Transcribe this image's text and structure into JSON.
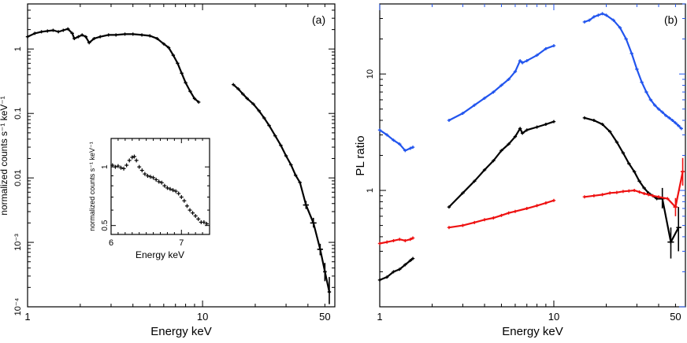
{
  "colors": {
    "black": "#000000",
    "blue": "#2255ee",
    "red": "#ee1111"
  },
  "chart_data": [
    {
      "panel": "(a)",
      "type": "scatter",
      "xscale": "log",
      "yscale": "log",
      "xlabel": "Energy keV",
      "ylabel": "normalized counts s⁻¹ keV⁻¹",
      "xlim": [
        1,
        57
      ],
      "ylim": [
        0.0001,
        5
      ],
      "xticks": [
        "1",
        "10",
        "50"
      ],
      "yticks": [
        "10⁻⁴",
        "10⁻³",
        "0.01",
        "0.1",
        "1"
      ],
      "series": [
        {
          "name": "spectrum",
          "color": "black",
          "points": [
            [
              1.0,
              1.55
            ],
            [
              1.1,
              1.75
            ],
            [
              1.2,
              1.85
            ],
            [
              1.3,
              1.9
            ],
            [
              1.4,
              1.95
            ],
            [
              1.5,
              1.85
            ],
            [
              1.6,
              1.95
            ],
            [
              1.7,
              2.05
            ],
            [
              1.8,
              1.75
            ],
            [
              1.85,
              1.45
            ],
            [
              1.95,
              1.55
            ],
            [
              2.05,
              1.65
            ],
            [
              2.15,
              1.55
            ],
            [
              2.25,
              1.25
            ],
            [
              2.4,
              1.45
            ],
            [
              2.6,
              1.55
            ],
            [
              2.9,
              1.65
            ],
            [
              3.2,
              1.65
            ],
            [
              3.6,
              1.7
            ],
            [
              4.0,
              1.7
            ],
            [
              4.5,
              1.65
            ],
            [
              5.0,
              1.6
            ],
            [
              5.5,
              1.45
            ],
            [
              6.0,
              1.2
            ],
            [
              6.4,
              1.05
            ],
            [
              6.8,
              0.8
            ],
            [
              7.2,
              0.6
            ],
            [
              7.6,
              0.42
            ],
            [
              8.0,
              0.3
            ],
            [
              8.5,
              0.22
            ],
            [
              9.0,
              0.17
            ],
            [
              9.5,
              0.15
            ],
            [
              15.0,
              0.28
            ],
            [
              16.0,
              0.24
            ],
            [
              17.0,
              0.2
            ],
            [
              18.0,
              0.17
            ],
            [
              19.5,
              0.14
            ],
            [
              21.0,
              0.11
            ],
            [
              22.5,
              0.085
            ],
            [
              24.0,
              0.065
            ],
            [
              26.0,
              0.045
            ],
            [
              28.0,
              0.032
            ],
            [
              30.0,
              0.022
            ],
            [
              32.0,
              0.016
            ],
            [
              34.0,
              0.011
            ],
            [
              36.0,
              0.0085
            ],
            [
              39.0,
              0.0038
            ],
            [
              43.0,
              0.002
            ],
            [
              47.0,
              0.00078
            ],
            [
              50.0,
              0.00035
            ],
            [
              53.0,
              0.00017
            ]
          ],
          "error_bars": [
            {
              "x": 39.0,
              "y": 0.0038,
              "xerr": [
                37.5,
                40.5
              ],
              "yerr": [
                0.0033,
                0.0044
              ]
            },
            {
              "x": 43.0,
              "y": 0.002,
              "xerr": [
                41.2,
                44.8
              ],
              "yerr": [
                0.0017,
                0.0024
              ]
            },
            {
              "x": 47.0,
              "y": 0.00078,
              "xerr": [
                45.2,
                48.8
              ],
              "yerr": [
                0.00063,
                0.00095
              ]
            },
            {
              "x": 50.0,
              "y": 0.00035,
              "xerr": [
                49.0,
                51.2
              ],
              "yerr": [
                0.00025,
                0.00048
              ]
            },
            {
              "x": 53.0,
              "y": 0.00017,
              "xerr": [
                52.0,
                54.0
              ],
              "yerr": [
                0.00011,
                0.00029
              ]
            }
          ]
        }
      ],
      "inset": {
        "type": "scatter",
        "xlabel": "Energy keV",
        "ylabel": "normalized counts s⁻¹ keV⁻¹",
        "xlim": [
          6.0,
          7.4
        ],
        "ylim": [
          0.45,
          1.4
        ],
        "xticks": [
          "6",
          "7"
        ],
        "yticks": [
          "0.5",
          "1"
        ],
        "points": [
          [
            6.02,
            1.02
          ],
          [
            6.06,
            1.0
          ],
          [
            6.1,
            1.01
          ],
          [
            6.14,
            0.99
          ],
          [
            6.18,
            0.98
          ],
          [
            6.22,
            1.02
          ],
          [
            6.26,
            1.08
          ],
          [
            6.3,
            1.12
          ],
          [
            6.33,
            1.13
          ],
          [
            6.36,
            1.08
          ],
          [
            6.4,
            1.0
          ],
          [
            6.44,
            0.96
          ],
          [
            6.48,
            0.92
          ],
          [
            6.52,
            0.9
          ],
          [
            6.56,
            0.89
          ],
          [
            6.6,
            0.88
          ],
          [
            6.64,
            0.86
          ],
          [
            6.68,
            0.84
          ],
          [
            6.72,
            0.83
          ],
          [
            6.76,
            0.8
          ],
          [
            6.8,
            0.78
          ],
          [
            6.84,
            0.77
          ],
          [
            6.88,
            0.76
          ],
          [
            6.92,
            0.75
          ],
          [
            6.96,
            0.73
          ],
          [
            7.0,
            0.7
          ],
          [
            7.04,
            0.67
          ],
          [
            7.08,
            0.63
          ],
          [
            7.12,
            0.6
          ],
          [
            7.16,
            0.58
          ],
          [
            7.2,
            0.56
          ],
          [
            7.24,
            0.54
          ],
          [
            7.28,
            0.52
          ],
          [
            7.32,
            0.52
          ],
          [
            7.36,
            0.51
          ]
        ]
      }
    },
    {
      "panel": "(b)",
      "type": "scatter",
      "xscale": "log",
      "yscale": "log",
      "xlabel": "Energy keV",
      "ylabel": "PL ratio",
      "xlim": [
        1,
        57
      ],
      "ylim": [
        0.1,
        40
      ],
      "xticks": [
        "1",
        "10",
        "50"
      ],
      "yticks": [
        "1",
        "10"
      ],
      "series": [
        {
          "name": "blue",
          "color": "blue",
          "points": [
            [
              1.0,
              3.3
            ],
            [
              1.1,
              3.0
            ],
            [
              1.2,
              2.7
            ],
            [
              1.3,
              2.5
            ],
            [
              1.4,
              2.2
            ],
            [
              1.5,
              2.3
            ],
            [
              1.55,
              2.35
            ],
            [
              2.5,
              4.0
            ],
            [
              3.0,
              4.6
            ],
            [
              3.5,
              5.4
            ],
            [
              4.0,
              6.2
            ],
            [
              4.5,
              7.0
            ],
            [
              5.0,
              8.0
            ],
            [
              5.5,
              9.0
            ],
            [
              6.0,
              10.5
            ],
            [
              6.4,
              13.0
            ],
            [
              6.6,
              12.5
            ],
            [
              7.0,
              13.0
            ],
            [
              8.0,
              14.5
            ],
            [
              9.0,
              16.5
            ],
            [
              10.0,
              17.5
            ],
            [
              15.0,
              28.0
            ],
            [
              16.0,
              29.0
            ],
            [
              17.0,
              31.0
            ],
            [
              18.0,
              32.0
            ],
            [
              19.0,
              33.0
            ],
            [
              20.0,
              32.0
            ],
            [
              22.0,
              29.0
            ],
            [
              24.0,
              25.0
            ],
            [
              26.0,
              20.0
            ],
            [
              28.0,
              15.0
            ],
            [
              30.0,
              11.0
            ],
            [
              32.0,
              8.5
            ],
            [
              34.0,
              7.0
            ],
            [
              36.0,
              6.0
            ],
            [
              38.0,
              5.4
            ],
            [
              40.0,
              5.0
            ],
            [
              42.0,
              4.7
            ],
            [
              44.0,
              4.4
            ],
            [
              46.0,
              4.2
            ],
            [
              48.0,
              4.0
            ],
            [
              50.0,
              3.8
            ],
            [
              52.0,
              3.6
            ],
            [
              54.0,
              3.4
            ]
          ]
        },
        {
          "name": "black",
          "color": "black",
          "points": [
            [
              1.0,
              0.17
            ],
            [
              1.1,
              0.18
            ],
            [
              1.2,
              0.2
            ],
            [
              1.3,
              0.21
            ],
            [
              1.4,
              0.23
            ],
            [
              1.5,
              0.25
            ],
            [
              1.55,
              0.26
            ],
            [
              2.5,
              0.72
            ],
            [
              3.0,
              0.95
            ],
            [
              3.5,
              1.2
            ],
            [
              4.0,
              1.5
            ],
            [
              4.5,
              1.8
            ],
            [
              5.0,
              2.2
            ],
            [
              5.5,
              2.5
            ],
            [
              6.0,
              2.9
            ],
            [
              6.4,
              3.4
            ],
            [
              6.6,
              3.1
            ],
            [
              7.0,
              3.3
            ],
            [
              8.0,
              3.5
            ],
            [
              9.0,
              3.7
            ],
            [
              10.0,
              3.9
            ],
            [
              15.0,
              4.2
            ],
            [
              17.0,
              4.0
            ],
            [
              19.0,
              3.7
            ],
            [
              21.0,
              3.2
            ],
            [
              23.0,
              2.6
            ],
            [
              25.0,
              2.1
            ],
            [
              27.0,
              1.7
            ],
            [
              29.0,
              1.45
            ],
            [
              31.0,
              1.2
            ],
            [
              33.0,
              1.05
            ],
            [
              35.0,
              0.95
            ],
            [
              37.0,
              0.9
            ],
            [
              39.0,
              0.85
            ],
            [
              42.0,
              0.85
            ],
            [
              47.0,
              0.36
            ],
            [
              52.0,
              0.48
            ]
          ],
          "error_bars": [
            {
              "x": 42.0,
              "y": 0.85,
              "xerr": [
                40.5,
                43.5
              ],
              "yerr": [
                0.7,
                1.05
              ]
            },
            {
              "x": 47.0,
              "y": 0.36,
              "xerr": [
                45.0,
                49.0
              ],
              "yerr": [
                0.26,
                0.48
              ]
            },
            {
              "x": 52.0,
              "y": 0.48,
              "xerr": [
                50.5,
                54.0
              ],
              "yerr": [
                0.3,
                0.72
              ]
            }
          ]
        },
        {
          "name": "red",
          "color": "red",
          "points": [
            [
              1.0,
              0.35
            ],
            [
              1.1,
              0.36
            ],
            [
              1.2,
              0.37
            ],
            [
              1.3,
              0.38
            ],
            [
              1.4,
              0.37
            ],
            [
              1.5,
              0.38
            ],
            [
              1.55,
              0.39
            ],
            [
              2.5,
              0.48
            ],
            [
              3.0,
              0.5
            ],
            [
              3.5,
              0.53
            ],
            [
              4.0,
              0.56
            ],
            [
              4.5,
              0.58
            ],
            [
              5.0,
              0.61
            ],
            [
              5.5,
              0.64
            ],
            [
              6.0,
              0.66
            ],
            [
              7.0,
              0.7
            ],
            [
              8.0,
              0.74
            ],
            [
              9.0,
              0.78
            ],
            [
              10.0,
              0.82
            ],
            [
              15.0,
              0.88
            ],
            [
              17.0,
              0.9
            ],
            [
              19.0,
              0.92
            ],
            [
              21.0,
              0.95
            ],
            [
              23.0,
              0.96
            ],
            [
              25.0,
              0.98
            ],
            [
              27.0,
              0.99
            ],
            [
              29.0,
              1.0
            ],
            [
              31.0,
              0.97
            ],
            [
              33.0,
              0.94
            ],
            [
              35.0,
              0.92
            ],
            [
              37.0,
              0.9
            ],
            [
              40.0,
              0.88
            ],
            [
              45.0,
              0.85
            ],
            [
              50.0,
              0.72
            ],
            [
              55.0,
              1.45
            ]
          ],
          "error_bars": [
            {
              "x": 50.0,
              "y": 0.72,
              "xerr": [
                48.5,
                51.5
              ],
              "yerr": [
                0.6,
                0.86
              ]
            },
            {
              "x": 55.0,
              "y": 1.45,
              "xerr": [
                53.5,
                56.5
              ],
              "yerr": [
                1.1,
                1.9
              ]
            }
          ]
        }
      ]
    }
  ]
}
